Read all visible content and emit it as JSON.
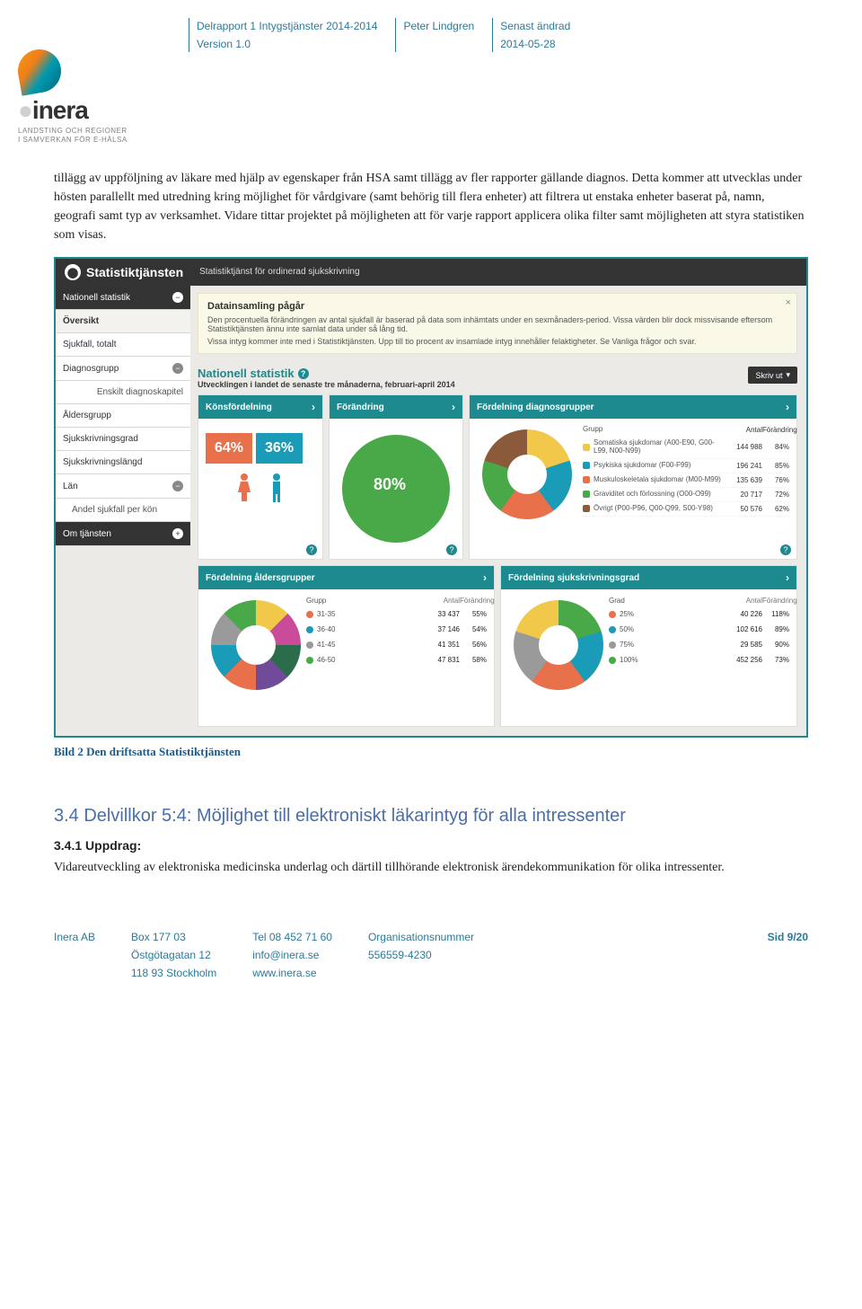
{
  "header": {
    "col1_l1": "Delrapport 1 Intygstjänster 2014-2014",
    "col1_l2": "Version 1.0",
    "col2_l1": "Peter Lindgren",
    "col3_l1": "Senast ändrad",
    "col3_l2": "2014-05-28"
  },
  "logo": {
    "word_main": "inera",
    "sub1": "LANDSTING OCH REGIONER",
    "sub2": "I SAMVERKAN FÖR E-HÄLSA"
  },
  "para1": "tillägg av uppföljning av läkare med hjälp av egenskaper från HSA samt tillägg av fler rapporter gällande diagnos. Detta kommer att utvecklas under hösten parallellt med utredning kring möjlighet för vårdgivare (samt behörig till flera enheter) att filtrera ut enstaka enheter baserat på, namn, geografi samt typ av verksamhet. Vidare tittar projektet på möjligheten att för varje rapport applicera olika filter samt möjligheten att styra statistiken som visas.",
  "shot": {
    "brand": "Statistiktjänsten",
    "brand_sub": "Statistiktjänst för ordinerad sjukskrivning",
    "sidebar": {
      "nat": "Nationell statistik",
      "over": "Översikt",
      "sjuk": "Sjukfall, totalt",
      "diag": "Diagnosgrupp",
      "diag_sub": "Enskilt diagnoskapitel",
      "alder": "Åldersgrupp",
      "grad": "Sjukskrivningsgrad",
      "langd": "Sjukskrivningslängd",
      "lan": "Län",
      "andel": "Andel sjukfall per kön",
      "om": "Om tjänsten"
    },
    "alert": {
      "title": "Datainsamling pågår",
      "body1": "Den procentuella förändringen av antal sjukfall är baserad på data som inhämtats under en sexmånaders-period. Vissa värden blir dock missvisande eftersom Statistiktjänsten ännu inte samlat data under så lång tid.",
      "body2": "Vissa intyg kommer inte med i Statistiktjänsten. Upp till tio procent av insamlade intyg innehåller felaktigheter. Se Vanliga frågor och svar."
    },
    "section": {
      "title": "Nationell statistik",
      "subtitle": "Utvecklingen i landet de senaste tre månaderna, februari-april 2014",
      "print": "Skriv ut"
    },
    "card_gender": {
      "title": "Könsfördelning",
      "f_pct": "64%",
      "m_pct": "36%",
      "f_color": "#e8704b",
      "m_color": "#1a9bb8"
    },
    "card_change": {
      "title": "Förändring",
      "value": "80%",
      "color": "#49a847"
    },
    "card_diag": {
      "title": "Fördelning diagnosgrupper",
      "head_g": "Grupp",
      "head_a": "Antal",
      "head_f": "Förändring",
      "rows": [
        {
          "color": "#f2c84b",
          "name": "Somatiska sjukdomar (A00-E90, G00-L99, N00-N99)",
          "antal": "144 988",
          "pct": "84%"
        },
        {
          "color": "#1a9bb8",
          "name": "Psykiska sjukdomar (F00-F99)",
          "antal": "196 241",
          "pct": "85%"
        },
        {
          "color": "#e8704b",
          "name": "Muskuloskeletala sjukdomar (M00-M99)",
          "antal": "135 639",
          "pct": "76%"
        },
        {
          "color": "#49a847",
          "name": "Graviditet och förlossning (O00-O99)",
          "antal": "20 717",
          "pct": "72%"
        },
        {
          "color": "#8a5a3b",
          "name": "Övrigt (P00-P96, Q00-Q99, S00-Y98)",
          "antal": "50 576",
          "pct": "62%"
        }
      ]
    },
    "card_age": {
      "title": "Fördelning åldersgrupper",
      "head_g": "Grupp",
      "head_a": "Antal",
      "head_f": "Förändring",
      "donut_colors": [
        "#f2c84b",
        "#c94b9a",
        "#2a6c4b",
        "#704b9a",
        "#e8704b",
        "#1a9bb8",
        "#9a9a9a",
        "#49a847"
      ],
      "rows": [
        {
          "color": "#e8704b",
          "name": "31-35",
          "antal": "33 437",
          "pct": "55%"
        },
        {
          "color": "#1a9bb8",
          "name": "36-40",
          "antal": "37 146",
          "pct": "54%"
        },
        {
          "color": "#9a9a9a",
          "name": "41-45",
          "antal": "41 351",
          "pct": "56%"
        },
        {
          "color": "#49a847",
          "name": "46-50",
          "antal": "47 831",
          "pct": "58%"
        }
      ]
    },
    "card_grad": {
      "title": "Fördelning sjukskrivningsgrad",
      "head_g": "Grad",
      "head_a": "Antal",
      "head_f": "Förändring",
      "donut_colors": [
        "#49a847",
        "#1a9bb8",
        "#e8704b",
        "#9a9a9a",
        "#f2c84b"
      ],
      "rows": [
        {
          "color": "#e8704b",
          "name": "25%",
          "antal": "40 226",
          "pct": "118%"
        },
        {
          "color": "#1a9bb8",
          "name": "50%",
          "antal": "102 616",
          "pct": "89%"
        },
        {
          "color": "#9a9a9a",
          "name": "75%",
          "antal": "29 585",
          "pct": "90%"
        },
        {
          "color": "#49a847",
          "name": "100%",
          "antal": "452 256",
          "pct": "73%"
        }
      ]
    }
  },
  "caption": "Bild 2 Den driftsatta Statistiktjänsten",
  "s34": {
    "h2": "3.4  Delvillkor 5:4: Möjlighet till elektroniskt läkarintyg för alla intressenter",
    "h3": "3.4.1   Uppdrag:",
    "p": "Vidareutveckling av elektroniska medicinska underlag och därtill tillhörande elektronisk ärendekommunikation för olika intressenter."
  },
  "footer": {
    "c1_1": "Inera AB",
    "c2_1": "Box 177 03",
    "c2_2": "Östgötagatan 12",
    "c2_3": "118 93 Stockholm",
    "c3_1": "Tel 08 452 71 60",
    "c3_2": "info@inera.se",
    "c3_3": "www.inera.se",
    "c4_1": "Organisationsnummer",
    "c4_2": "556559-4230",
    "page": "Sid 9/20"
  }
}
